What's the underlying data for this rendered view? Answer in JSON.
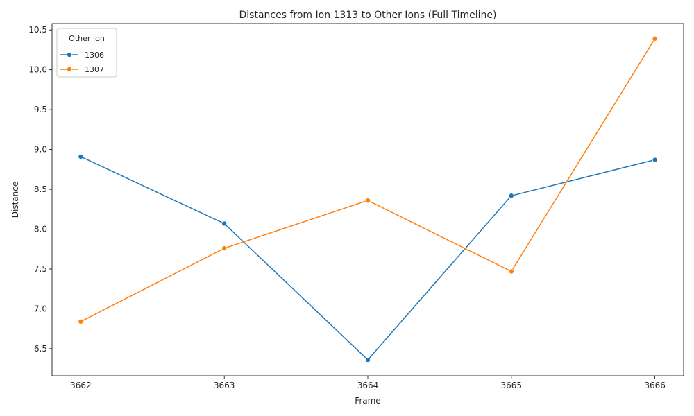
{
  "chart_data": {
    "type": "line",
    "title": "Distances from Ion 1313 to Other Ions (Full Timeline)",
    "xlabel": "Frame",
    "ylabel": "Distance",
    "x": [
      3662,
      3663,
      3664,
      3665,
      3666
    ],
    "x_ticks": [
      "3662",
      "3663",
      "3664",
      "3665",
      "3666"
    ],
    "y_ticks": [
      "6.5",
      "7.0",
      "7.5",
      "8.0",
      "8.5",
      "9.0",
      "9.5",
      "10.0",
      "10.5"
    ],
    "y_tick_values": [
      6.5,
      7.0,
      7.5,
      8.0,
      8.5,
      9.0,
      9.5,
      10.0,
      10.5
    ],
    "xlim": [
      3661.8,
      3666.2
    ],
    "ylim": [
      6.16,
      10.58
    ],
    "grid": false,
    "legend": {
      "title": "Other Ion",
      "placement": "top-left"
    },
    "series": [
      {
        "name": "1306",
        "color": "#1f77b4",
        "marker": "circle",
        "values": [
          8.91,
          8.07,
          6.36,
          8.42,
          8.87
        ]
      },
      {
        "name": "1307",
        "color": "#ff7f0e",
        "marker": "circle",
        "values": [
          6.84,
          7.76,
          8.36,
          7.47,
          10.39
        ]
      }
    ]
  }
}
